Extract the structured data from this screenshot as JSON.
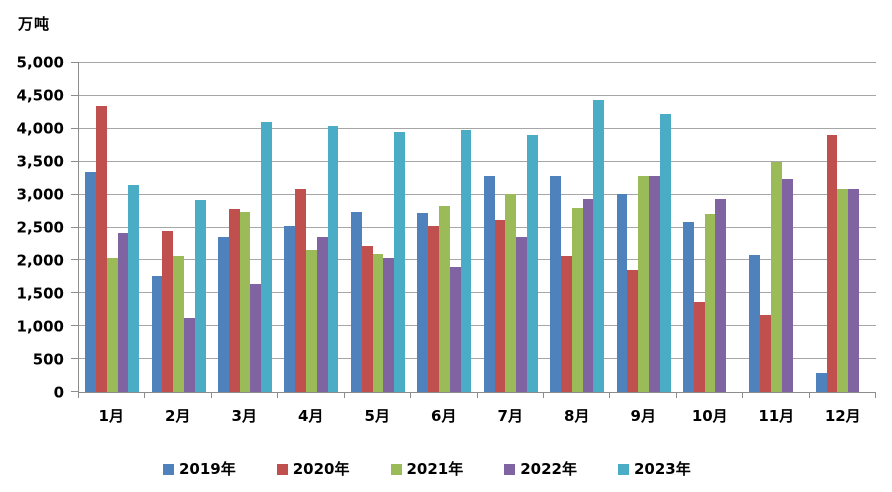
{
  "chart_data": {
    "type": "bar",
    "title": "",
    "unit": "万吨",
    "categories": [
      "1月",
      "2月",
      "3月",
      "4月",
      "5月",
      "6月",
      "7月",
      "8月",
      "9月",
      "10月",
      "11月",
      "12月"
    ],
    "series": [
      {
        "name": "2019年",
        "color": "#4F81BD",
        "values": [
          3350,
          1770,
          2350,
          2530,
          2740,
          2720,
          3290,
          3290,
          3010,
          2580,
          2080,
          290
        ]
      },
      {
        "name": "2020年",
        "color": "#C0504D",
        "values": [
          4350,
          2440,
          2780,
          3080,
          2220,
          2530,
          2610,
          2070,
          1860,
          1370,
          1170,
          3900
        ]
      },
      {
        "name": "2021年",
        "color": "#9BBB59",
        "values": [
          2040,
          2070,
          2740,
          2160,
          2100,
          2830,
          3010,
          2800,
          3290,
          2700,
          3490,
          3080
        ]
      },
      {
        "name": "2022年",
        "color": "#8064A2",
        "values": [
          2420,
          1120,
          1640,
          2350,
          2040,
          1900,
          2350,
          2930,
          3290,
          2930,
          3230,
          3080
        ]
      },
      {
        "name": "2023年",
        "color": "#4BACC6",
        "values": [
          3150,
          2920,
          4100,
          4050,
          3950,
          3980,
          3900,
          4440,
          4220,
          null,
          null,
          null
        ]
      }
    ],
    "ylim": [
      0,
      5000
    ],
    "y_tick_step": 500,
    "y_tick_labels": [
      "0",
      "500",
      "1,000",
      "1,500",
      "2,000",
      "2,500",
      "3,000",
      "3,500",
      "4,000",
      "4,500",
      "5,000"
    ],
    "grid": true,
    "legend_position": "bottom"
  },
  "colors": {
    "gridline": "#A6A6A6",
    "axis": "#8C8C8C",
    "text": "#000000",
    "background": "#FFFFFF"
  }
}
